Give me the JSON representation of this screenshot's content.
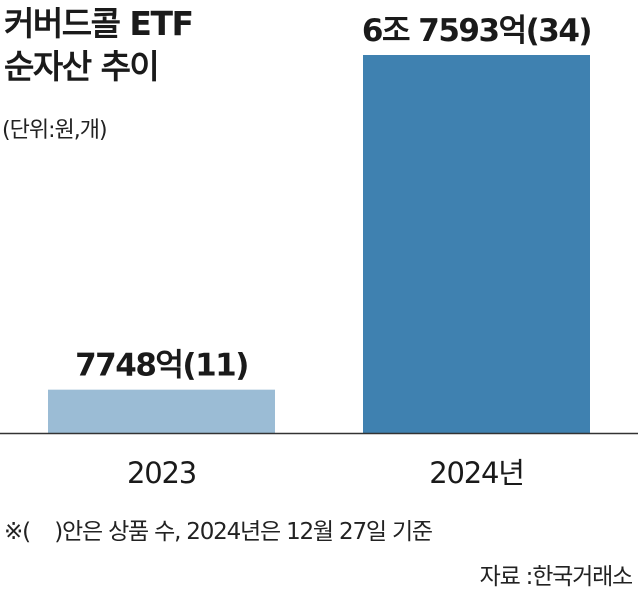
{
  "title_lines": [
    "커버드콜 ETF",
    "순자산 추이"
  ],
  "unit_label": "(단위:원,개)",
  "footnote": "※(    )안은 상품 수, 2024년은 12월 27일 기준",
  "source": "자료 :한국거래소",
  "chart_data": {
    "type": "bar",
    "categories": [
      "2023",
      "2024년"
    ],
    "values": [
      7748,
      67593
    ],
    "value_unit": "억원",
    "data_labels": [
      "7748억(11)",
      "6조 7593억(34)"
    ],
    "product_counts": [
      11,
      34
    ],
    "bar_colors": [
      "#9bbcd5",
      "#3f81b0"
    ],
    "grid": false,
    "legend": "none"
  }
}
